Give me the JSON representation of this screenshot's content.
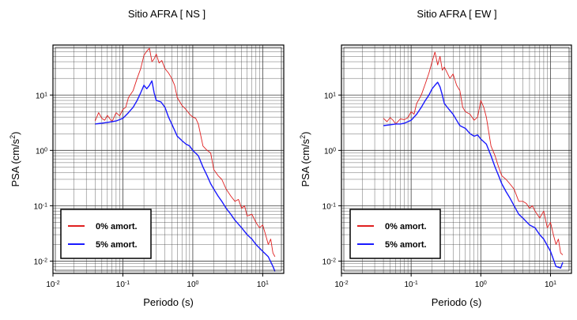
{
  "colors": {
    "red": "#e02020",
    "blue": "#1a1aff",
    "grid": "#000000"
  },
  "chart_data": [
    {
      "type": "line",
      "title": "Sitio AFRA [ NS ]",
      "xlabel": "Periodo (s)",
      "ylabel_main": "PSA (cm/s",
      "ylabel_exp": "2",
      "ylabel_close": ")",
      "xscale": "log",
      "yscale": "log",
      "xlim": [
        0.01,
        20
      ],
      "ylim": [
        0.006,
        80
      ],
      "xticks": [
        {
          "base": "10",
          "exp": "-2",
          "v": 0.01
        },
        {
          "base": "10",
          "exp": "-1",
          "v": 0.1
        },
        {
          "base": "10",
          "exp": "0",
          "v": 1
        },
        {
          "base": "10",
          "exp": "1",
          "v": 10
        }
      ],
      "yticks": [
        {
          "base": "10",
          "exp": "-2",
          "v": 0.01
        },
        {
          "base": "10",
          "exp": "-1",
          "v": 0.1
        },
        {
          "base": "10",
          "exp": "0",
          "v": 1
        },
        {
          "base": "10",
          "exp": "1",
          "v": 10
        }
      ],
      "grid": true,
      "legend_position": "bottom-left",
      "series": [
        {
          "name": "0% amort.",
          "color": "#e02020",
          "x": [
            0.04,
            0.045,
            0.05,
            0.055,
            0.06,
            0.07,
            0.08,
            0.09,
            0.1,
            0.11,
            0.12,
            0.14,
            0.16,
            0.18,
            0.2,
            0.22,
            0.24,
            0.26,
            0.28,
            0.3,
            0.33,
            0.36,
            0.4,
            0.45,
            0.5,
            0.55,
            0.6,
            0.7,
            0.8,
            0.9,
            1.0,
            1.1,
            1.2,
            1.4,
            1.6,
            1.8,
            2.0,
            2.3,
            2.6,
            3.0,
            3.5,
            4.0,
            4.5,
            5.0,
            5.5,
            6.0,
            7.0,
            8.0,
            9.0,
            10,
            11,
            12,
            13,
            14,
            15
          ],
          "values": [
            3.4,
            4.8,
            3.8,
            3.5,
            4.3,
            3.3,
            4.8,
            4.2,
            5.5,
            6.0,
            9.0,
            12,
            20,
            30,
            52,
            62,
            70,
            40,
            45,
            55,
            38,
            42,
            30,
            25,
            20,
            15,
            9.0,
            6.5,
            5.5,
            4.5,
            4.0,
            3.8,
            3.0,
            1.2,
            1.0,
            0.9,
            0.45,
            0.35,
            0.3,
            0.2,
            0.15,
            0.12,
            0.13,
            0.09,
            0.1,
            0.065,
            0.07,
            0.05,
            0.04,
            0.045,
            0.03,
            0.02,
            0.025,
            0.014,
            0.012
          ]
        },
        {
          "name": "5% amort.",
          "color": "#1a1aff",
          "x": [
            0.04,
            0.05,
            0.06,
            0.07,
            0.08,
            0.09,
            0.1,
            0.12,
            0.14,
            0.16,
            0.18,
            0.2,
            0.22,
            0.24,
            0.26,
            0.28,
            0.3,
            0.35,
            0.4,
            0.45,
            0.5,
            0.6,
            0.7,
            0.8,
            0.9,
            1.0,
            1.2,
            1.4,
            1.6,
            1.8,
            2.0,
            2.3,
            2.6,
            3.0,
            3.5,
            4.0,
            5.0,
            6.0,
            7.0,
            8.0,
            10,
            12,
            14,
            15
          ],
          "values": [
            3.0,
            3.1,
            3.2,
            3.3,
            3.4,
            3.6,
            3.8,
            4.8,
            6.0,
            8.0,
            11,
            15,
            13,
            15,
            18,
            11,
            8.0,
            7.5,
            6.0,
            4.0,
            3.0,
            1.8,
            1.5,
            1.3,
            1.2,
            1.0,
            0.8,
            0.5,
            0.35,
            0.25,
            0.2,
            0.15,
            0.12,
            0.09,
            0.07,
            0.055,
            0.04,
            0.03,
            0.025,
            0.02,
            0.015,
            0.012,
            0.008,
            0.0065
          ]
        }
      ]
    },
    {
      "type": "line",
      "title": "Sitio AFRA [ EW ]",
      "xlabel": "Periodo (s)",
      "ylabel_main": "PSA (cm/s",
      "ylabel_exp": "2",
      "ylabel_close": ")",
      "xscale": "log",
      "yscale": "log",
      "xlim": [
        0.01,
        20
      ],
      "ylim": [
        0.006,
        80
      ],
      "xticks": [
        {
          "base": "10",
          "exp": "-2",
          "v": 0.01
        },
        {
          "base": "10",
          "exp": "-1",
          "v": 0.1
        },
        {
          "base": "10",
          "exp": "0",
          "v": 1
        },
        {
          "base": "10",
          "exp": "1",
          "v": 10
        }
      ],
      "yticks": [
        {
          "base": "10",
          "exp": "-2",
          "v": 0.01
        },
        {
          "base": "10",
          "exp": "-1",
          "v": 0.1
        },
        {
          "base": "10",
          "exp": "0",
          "v": 1
        },
        {
          "base": "10",
          "exp": "1",
          "v": 10
        }
      ],
      "grid": true,
      "legend_position": "bottom-left",
      "series": [
        {
          "name": "0% amort.",
          "color": "#e02020",
          "x": [
            0.04,
            0.045,
            0.05,
            0.055,
            0.06,
            0.07,
            0.08,
            0.09,
            0.1,
            0.11,
            0.12,
            0.14,
            0.16,
            0.18,
            0.2,
            0.22,
            0.24,
            0.26,
            0.28,
            0.3,
            0.33,
            0.36,
            0.4,
            0.45,
            0.5,
            0.55,
            0.6,
            0.7,
            0.8,
            0.9,
            1.0,
            1.1,
            1.2,
            1.4,
            1.6,
            1.8,
            2.0,
            2.3,
            2.6,
            3.0,
            3.5,
            4.0,
            4.5,
            5.0,
            5.5,
            6.0,
            7.0,
            8.0,
            9.0,
            10,
            11,
            12,
            13,
            14,
            15
          ],
          "values": [
            3.8,
            3.3,
            3.9,
            3.5,
            3.0,
            3.7,
            3.6,
            3.9,
            5.0,
            4.5,
            7.0,
            10,
            16,
            25,
            40,
            60,
            35,
            50,
            28,
            32,
            25,
            20,
            24,
            15,
            12,
            6.0,
            5.0,
            4.5,
            3.5,
            4.0,
            8.0,
            6.0,
            4.0,
            1.2,
            0.8,
            0.5,
            0.35,
            0.3,
            0.25,
            0.2,
            0.12,
            0.12,
            0.11,
            0.09,
            0.1,
            0.08,
            0.06,
            0.08,
            0.04,
            0.05,
            0.03,
            0.02,
            0.025,
            0.014,
            0.013
          ]
        },
        {
          "name": "5% amort.",
          "color": "#1a1aff",
          "x": [
            0.04,
            0.05,
            0.06,
            0.07,
            0.08,
            0.09,
            0.1,
            0.12,
            0.14,
            0.16,
            0.18,
            0.2,
            0.22,
            0.24,
            0.26,
            0.28,
            0.3,
            0.35,
            0.4,
            0.45,
            0.5,
            0.6,
            0.7,
            0.8,
            0.9,
            1.0,
            1.2,
            1.4,
            1.6,
            1.8,
            2.0,
            2.3,
            2.6,
            3.0,
            3.5,
            4.0,
            5.0,
            6.0,
            7.0,
            8.0,
            10,
            12,
            14,
            15
          ],
          "values": [
            2.8,
            2.9,
            3.0,
            3.0,
            3.1,
            3.3,
            3.5,
            4.5,
            6.0,
            8.0,
            10,
            13,
            15,
            17,
            14,
            10,
            7.0,
            5.5,
            4.5,
            3.5,
            2.8,
            2.5,
            2.0,
            1.8,
            1.9,
            1.6,
            1.3,
            0.8,
            0.5,
            0.35,
            0.25,
            0.18,
            0.14,
            0.1,
            0.07,
            0.06,
            0.045,
            0.04,
            0.03,
            0.025,
            0.015,
            0.008,
            0.0075,
            0.0095
          ]
        }
      ]
    }
  ]
}
